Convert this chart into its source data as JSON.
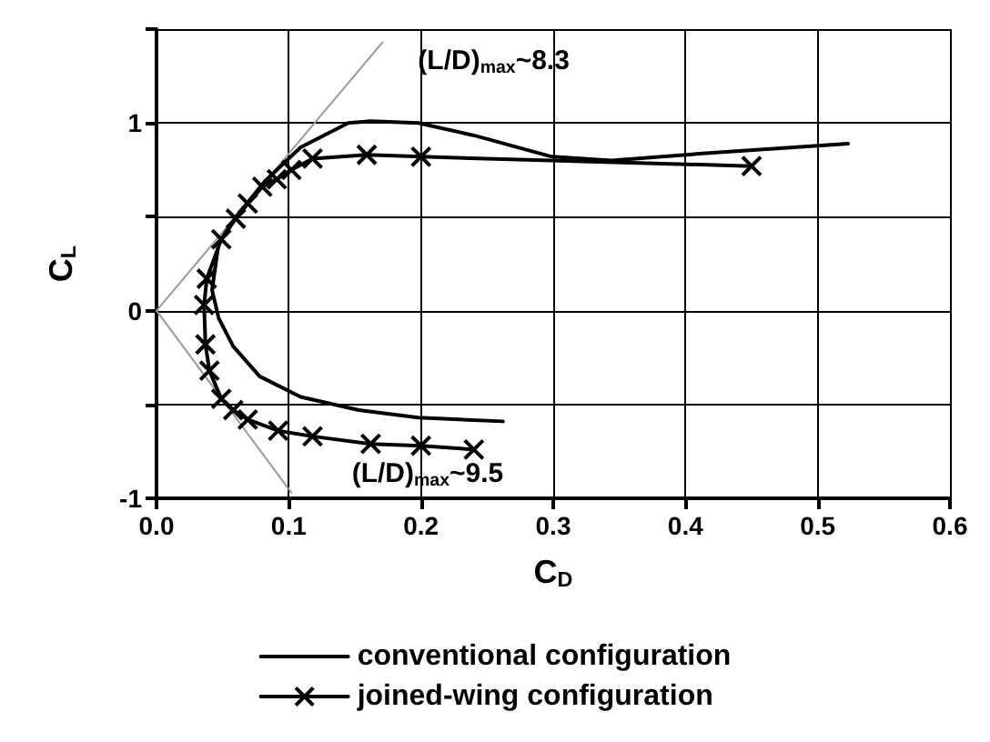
{
  "chart_data": {
    "type": "line",
    "xlabel": "C$_{D}$",
    "ylabel": "C$_{L}$",
    "xlim": [
      0,
      0.6
    ],
    "xticks": [
      {
        "value": 0,
        "label": "0.0"
      },
      {
        "value": 0.1,
        "label": "0.1"
      },
      {
        "value": 0.2,
        "label": "0.2"
      },
      {
        "value": 0.3,
        "label": "0.3"
      },
      {
        "value": 0.4,
        "label": "0.4"
      },
      {
        "value": 0.5,
        "label": "0.5"
      },
      {
        "value": 0.6,
        "label": "0.6"
      }
    ],
    "ylim": [
      -1,
      1.5
    ],
    "yticks": [
      -1,
      {
        "value": -0.5,
        "label": null
      },
      0,
      {
        "value": 0.5,
        "label": null
      },
      1,
      {
        "value": 1.5,
        "label": null
      }
    ],
    "grid": true,
    "legend": "bottom",
    "series": [
      {
        "name": "conventional configuration",
        "color": "#000000",
        "marker": "none",
        "x": [
          0.262,
          0.198,
          0.153,
          0.109,
          0.078,
          0.058,
          0.047,
          0.042,
          0.047,
          0.06,
          0.082,
          0.109,
          0.145,
          0.162,
          0.198,
          0.242,
          0.299,
          0.344,
          0.418,
          0.523
        ],
        "values": [
          -0.59,
          -0.57,
          -0.53,
          -0.46,
          -0.35,
          -0.19,
          -0.04,
          0.11,
          0.36,
          0.5,
          0.69,
          0.87,
          1.0,
          1.01,
          1.0,
          0.93,
          0.82,
          0.8,
          0.84,
          0.89
        ]
      },
      {
        "name": "joined-wing configuration",
        "color": "#000000",
        "marker": "cross",
        "x": [
          0.24,
          0.2,
          0.162,
          0.118,
          0.092,
          0.069,
          0.058,
          0.049,
          0.04,
          0.037,
          0.036,
          0.038,
          0.049,
          0.06,
          0.069,
          0.08,
          0.091,
          0.102,
          0.118,
          0.159,
          0.2,
          0.45
        ],
        "values": [
          -0.74,
          -0.72,
          -0.71,
          -0.67,
          -0.64,
          -0.58,
          -0.53,
          -0.47,
          -0.32,
          -0.18,
          0.03,
          0.17,
          0.38,
          0.49,
          0.57,
          0.66,
          0.7,
          0.75,
          0.81,
          0.83,
          0.82,
          0.77
        ]
      },
      {
        "color": "#999999",
        "marker": "none",
        "x": [
          0,
          0.171
        ],
        "values": [
          0,
          1.43
        ]
      },
      {
        "color": "#999999",
        "marker": "none",
        "x": [
          0,
          0.102
        ],
        "values": [
          0,
          -0.97
        ]
      }
    ],
    "annotations": [
      "(L/D)$_{max}$~8.3",
      "(L/D)$_{max}$~9.5"
    ]
  }
}
